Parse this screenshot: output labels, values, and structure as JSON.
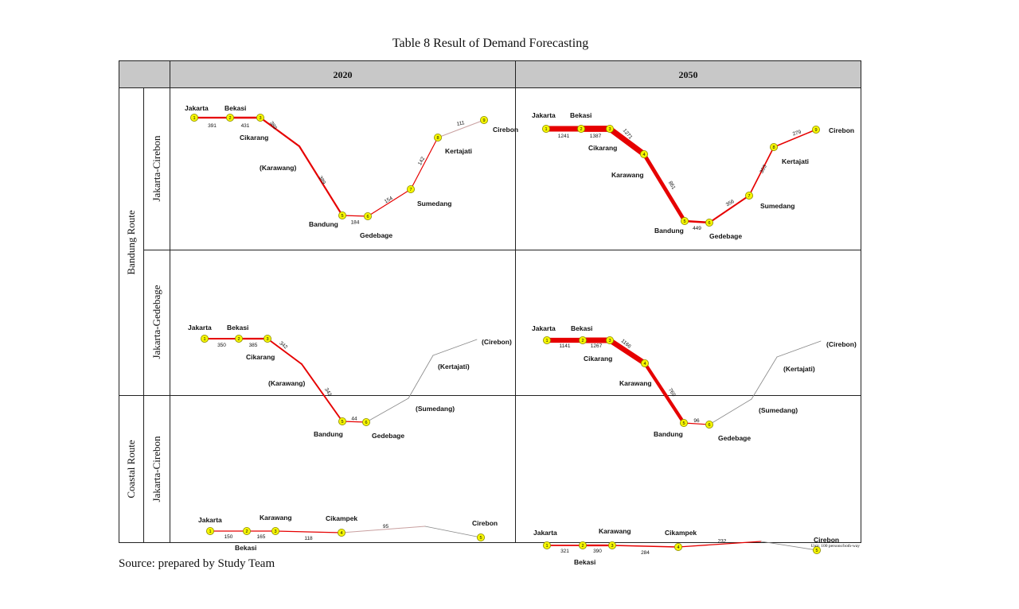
{
  "title": "Table 8    Result of Demand Forecasting",
  "columns": [
    "2020",
    "2050"
  ],
  "row_groups": [
    {
      "label": "Bandung Route",
      "rows": [
        "Jakarta-Cirebon",
        "Jakarta-Gedebage"
      ]
    },
    {
      "label": "Coastal Route",
      "rows": [
        "Jakarta-Cirebon"
      ]
    }
  ],
  "unit_note": "Unit: 100 persons/both-way",
  "source": "Source: prepared by Study Team",
  "colors": {
    "line": "#e60000",
    "thin_line": "#888888",
    "node_fill": "#f5f500",
    "node_stroke": "#8a8a00",
    "header_bg": "#c8c8c8"
  },
  "diagrams": [
    {
      "id": "bandung-jc-2020",
      "nodes": [
        {
          "n": "1",
          "label": "Jakarta"
        },
        {
          "n": "2",
          "label": "Bekasi"
        },
        {
          "n": "3",
          "label": "Cikarang"
        },
        {
          "n": "4",
          "label": "(Karawang)",
          "marker": false
        },
        {
          "n": "5",
          "label": "Bandung"
        },
        {
          "n": "6",
          "label": "Gedebage"
        },
        {
          "n": "7",
          "label": "Sumedang"
        },
        {
          "n": "8",
          "label": "Kertajati"
        },
        {
          "n": "9",
          "label": "Cirebon"
        }
      ],
      "segments": [
        391,
        431,
        389,
        389,
        184,
        154,
        142,
        111
      ]
    },
    {
      "id": "bandung-jc-2050",
      "nodes": [
        {
          "n": "1",
          "label": "Jakarta"
        },
        {
          "n": "2",
          "label": "Bekasi"
        },
        {
          "n": "3",
          "label": "Cikarang"
        },
        {
          "n": "4",
          "label": "Karawang"
        },
        {
          "n": "5",
          "label": "Bandung"
        },
        {
          "n": "6",
          "label": "Gedebage"
        },
        {
          "n": "7",
          "label": "Sumedang"
        },
        {
          "n": "8",
          "label": "Kertajati"
        },
        {
          "n": "9",
          "label": "Cirebon"
        }
      ],
      "segments": [
        1241,
        1387,
        1271,
        861,
        449,
        356,
        303,
        279
      ]
    },
    {
      "id": "bandung-jg-2020",
      "nodes": [
        {
          "n": "1",
          "label": "Jakarta"
        },
        {
          "n": "2",
          "label": "Bekasi"
        },
        {
          "n": "3",
          "label": "Cikarang"
        },
        {
          "n": "4",
          "label": "(Karawang)",
          "marker": false
        },
        {
          "n": "5",
          "label": "Bandung"
        },
        {
          "n": "6",
          "label": "Gedebage"
        },
        {
          "n": "7",
          "label": "(Sumedang)",
          "marker": false
        },
        {
          "n": "8",
          "label": "(Kertajati)",
          "marker": false
        },
        {
          "n": "9",
          "label": "(Cirebon)",
          "marker": false
        }
      ],
      "segments": [
        350,
        385,
        342,
        342,
        44
      ]
    },
    {
      "id": "bandung-jg-2050",
      "nodes": [
        {
          "n": "1",
          "label": "Jakarta"
        },
        {
          "n": "2",
          "label": "Bekasi"
        },
        {
          "n": "3",
          "label": "Cikarang"
        },
        {
          "n": "4",
          "label": "Karawang"
        },
        {
          "n": "5",
          "label": "Bandung"
        },
        {
          "n": "6",
          "label": "Gedebage"
        },
        {
          "n": "7",
          "label": "(Sumedang)",
          "marker": false
        },
        {
          "n": "8",
          "label": "(Kertajati)",
          "marker": false
        },
        {
          "n": "9",
          "label": "(Cirebon)",
          "marker": false
        }
      ],
      "segments": [
        1141,
        1267,
        1166,
        769,
        96
      ]
    },
    {
      "id": "coastal-jc-2020",
      "nodes": [
        {
          "n": "1",
          "label": "Jakarta"
        },
        {
          "n": "2",
          "label": "Bekasi"
        },
        {
          "n": "3",
          "label": "Karawang"
        },
        {
          "n": "4",
          "label": "Cikampek"
        },
        {
          "n": "",
          "label": "",
          "marker": false
        },
        {
          "n": "5",
          "label": "Cirebon"
        }
      ],
      "segments": [
        150,
        165,
        118,
        95
      ]
    },
    {
      "id": "coastal-jc-2050",
      "nodes": [
        {
          "n": "1",
          "label": "Jakarta"
        },
        {
          "n": "2",
          "label": "Bekasi"
        },
        {
          "n": "3",
          "label": "Karawang"
        },
        {
          "n": "4",
          "label": "Cikampek"
        },
        {
          "n": "",
          "label": "",
          "marker": false
        },
        {
          "n": "5",
          "label": "Cirebon"
        }
      ],
      "segments": [
        321,
        390,
        284,
        232
      ]
    }
  ]
}
